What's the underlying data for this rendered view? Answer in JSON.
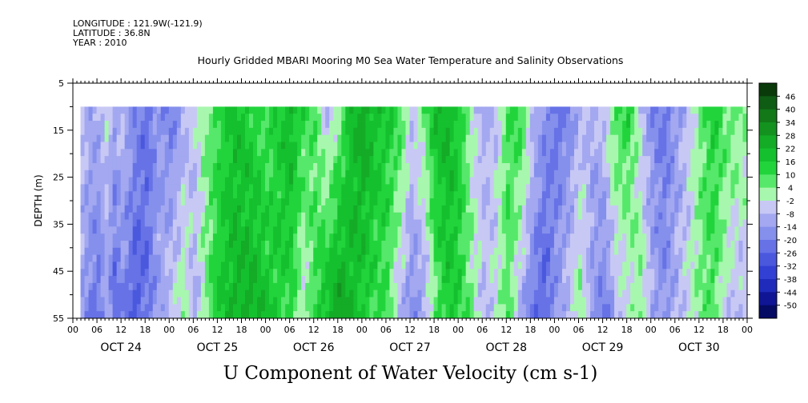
{
  "meta": {
    "longitude": "LONGITUDE : 121.9W(-121.9)",
    "latitude": "LATITUDE : 36.8N",
    "year": "YEAR : 2010"
  },
  "chart_data": {
    "type": "heatmap",
    "title": "Hourly Gridded MBARI Mooring M0 Sea Water Temperature and Salinity Observations",
    "xlabel": "U Component of Water Velocity (cm s-1)",
    "ylabel": "DEPTH (m)",
    "ylim": [
      55,
      5
    ],
    "yticks": [
      "5",
      "15",
      "25",
      "35",
      "45",
      "55"
    ],
    "hour_labels": [
      "00",
      "06",
      "12",
      "18",
      "00",
      "06",
      "12",
      "18",
      "00",
      "06",
      "12",
      "18",
      "00",
      "06",
      "12",
      "18",
      "00",
      "06",
      "12",
      "18",
      "00",
      "06",
      "12",
      "18",
      "00",
      "06",
      "12",
      "18",
      "00"
    ],
    "day_labels": [
      "OCT 24",
      "OCT 25",
      "OCT 26",
      "OCT 27",
      "OCT 28",
      "OCT 29",
      "OCT 30"
    ],
    "data_depth_range": [
      10,
      55
    ],
    "data_start_hour": 1.9,
    "colorbar": {
      "labels": [
        "46",
        "40",
        "34",
        "28",
        "22",
        "16",
        "10",
        "4",
        "-2",
        "-8",
        "-14",
        "-20",
        "-26",
        "-32",
        "-38",
        "-44",
        "-50"
      ],
      "colors": [
        "#0a3a0a",
        "#0f5c14",
        "#127818",
        "#13921f",
        "#14ab27",
        "#15c02e",
        "#22d43c",
        "#56e86a",
        "#a8f7ae",
        "#c8c8f5",
        "#a3a8f0",
        "#8590ec",
        "#6672e6",
        "#4a58de",
        "#3340d4",
        "#1f2bbb",
        "#0f1594",
        "#050a63"
      ]
    },
    "velocity_profile": {
      "hours": [
        2,
        4,
        6,
        8,
        10,
        12,
        15,
        18,
        21,
        24,
        27,
        30,
        33,
        36,
        40,
        44,
        48,
        51,
        54,
        57,
        60,
        63,
        66,
        69,
        72,
        75,
        78,
        81,
        84,
        87,
        90,
        93,
        96,
        99,
        102,
        105,
        108,
        111,
        114,
        117,
        120,
        123,
        126,
        129,
        132,
        135,
        138,
        141,
        144,
        147,
        150,
        153,
        156,
        159,
        162,
        165,
        168
      ],
      "surface_values": [
        -6,
        -10,
        -8,
        -4,
        -12,
        -6,
        -18,
        -24,
        -14,
        -20,
        -10,
        -4,
        4,
        12,
        18,
        14,
        8,
        16,
        22,
        12,
        6,
        -8,
        4,
        20,
        26,
        18,
        16,
        10,
        -4,
        6,
        20,
        22,
        14,
        -2,
        -10,
        -6,
        10,
        12,
        -4,
        -16,
        -24,
        -18,
        -8,
        -10,
        -4,
        10,
        12,
        -6,
        -18,
        -22,
        -14,
        -6,
        6,
        14,
        8,
        6,
        2
      ],
      "bottom_values": [
        -14,
        -20,
        -24,
        -12,
        -26,
        -20,
        -28,
        -22,
        -12,
        -4,
        2,
        -10,
        6,
        16,
        22,
        24,
        18,
        14,
        10,
        -4,
        12,
        22,
        28,
        20,
        14,
        10,
        8,
        -8,
        -18,
        -14,
        6,
        16,
        12,
        4,
        -6,
        -2,
        8,
        -10,
        -22,
        -28,
        -12,
        -6,
        4,
        -14,
        -22,
        -10,
        -4,
        6,
        -10,
        -16,
        -8,
        -2,
        4,
        8,
        -4,
        -10,
        -6
      ]
    }
  }
}
